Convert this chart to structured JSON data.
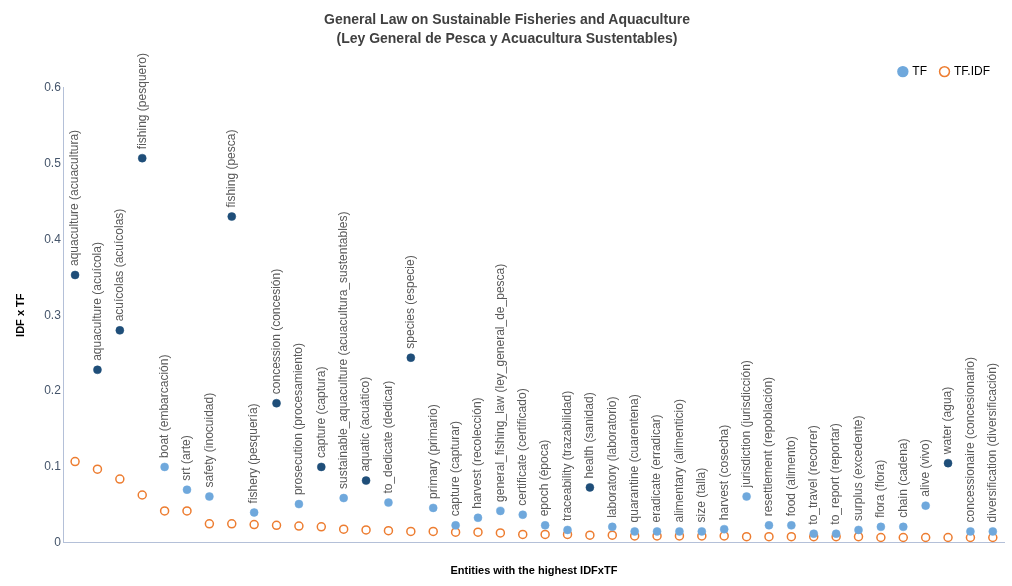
{
  "chart_data": {
    "type": "scatter",
    "title": "General Law on Sustainable Fisheries and Aquaculture",
    "subtitle": "(Ley General de Pesca y Acuacultura Sustentables)",
    "xlabel": "Entities with the highest IDFxTF",
    "ylabel": "IDF x TF",
    "categories": [
      "aquaculture (acuacultura)",
      "aquaculture (acuícola)",
      "acuícolas (acuícolas)",
      "fishing (pesquero)",
      "boat (embarcación)",
      "srt (arte)",
      "safety (inocuidad)",
      "fishing (pesca)",
      "fishery (pesquería)",
      "concession (concesión)",
      "prosecution (procesamiento)",
      "capture (captura)",
      "sustainable_aquaculture (acuacultura_sustentables)",
      "aquatic (acuático)",
      "to_dedicate (dedicar)",
      "species (especie)",
      "primary (primario)",
      "capture (capturar)",
      "harvest (recolección)",
      "general_fishing_law (ley_general_de_pesca)",
      "certificate (certificado)",
      "epoch (época)",
      "traceability (trazabilidad)",
      "health (sanidad)",
      "laboratory (laboratorio)",
      "quarantine (cuarentena)",
      "eradicate (erradicar)",
      "alimentary (alimenticio)",
      "size (talla)",
      "harvest (cosecha)",
      "jurisdiction (jurisdicción)",
      "resettlement (repoblación)",
      "food (alimento)",
      "to_travel (recorrer)",
      "to_report (reportar)",
      "surplus (excedente)",
      "flora (flora)",
      "chain (cadena)",
      "alive (vivo)",
      "water (agua)",
      "concessionaire (concesionario)",
      "diversification (diversificación)"
    ],
    "series": [
      {
        "name": "TF",
        "color": "#6fa8dc",
        "colors": [
          "#1f4e79",
          "#1f4e79",
          "#1f4e79",
          "#1f4e79",
          "#6fa8dc",
          "#6fa8dc",
          "#6fa8dc",
          "#1f4e79",
          "#6fa8dc",
          "#1f4e79",
          "#6fa8dc",
          "#1f4e79",
          "#6fa8dc",
          "#1f4e79",
          "#6fa8dc",
          "#1f4e79",
          "#6fa8dc",
          "#6fa8dc",
          "#6fa8dc",
          "#6fa8dc",
          "#6fa8dc",
          "#6fa8dc",
          "#6fa8dc",
          "#1f4e79",
          "#6fa8dc",
          "#6fa8dc",
          "#6fa8dc",
          "#6fa8dc",
          "#6fa8dc",
          "#6fa8dc",
          "#6fa8dc",
          "#6fa8dc",
          "#6fa8dc",
          "#6fa8dc",
          "#6fa8dc",
          "#6fa8dc",
          "#6fa8dc",
          "#6fa8dc",
          "#6fa8dc",
          "#1f4e79",
          "#6fa8dc",
          "#6fa8dc"
        ],
        "values": [
          0.353,
          0.228,
          0.28,
          0.507,
          0.1,
          0.07,
          0.061,
          0.43,
          0.04,
          0.184,
          0.051,
          0.1,
          0.059,
          0.082,
          0.053,
          0.244,
          0.046,
          0.023,
          0.033,
          0.042,
          0.037,
          0.023,
          0.017,
          0.073,
          0.021,
          0.015,
          0.015,
          0.015,
          0.015,
          0.018,
          0.061,
          0.023,
          0.023,
          0.012,
          0.012,
          0.017,
          0.021,
          0.021,
          0.049,
          0.105,
          0.015,
          0.015
        ]
      },
      {
        "name": "TF.IDF",
        "color": "#ed7d31",
        "values": [
          0.107,
          0.097,
          0.084,
          0.063,
          0.042,
          0.042,
          0.025,
          0.025,
          0.024,
          0.023,
          0.022,
          0.021,
          0.018,
          0.017,
          0.016,
          0.015,
          0.015,
          0.014,
          0.014,
          0.013,
          0.011,
          0.011,
          0.011,
          0.01,
          0.01,
          0.009,
          0.009,
          0.009,
          0.009,
          0.009,
          0.008,
          0.008,
          0.008,
          0.008,
          0.008,
          0.008,
          0.007,
          0.007,
          0.007,
          0.007,
          0.007,
          0.007
        ]
      }
    ],
    "ylim": [
      0,
      0.6
    ],
    "yticks": [
      0,
      0.1,
      0.2,
      0.3,
      0.4,
      0.5,
      0.6
    ],
    "grid": false,
    "legend": "top right",
    "marker": "circle",
    "tick_labels": "y"
  }
}
